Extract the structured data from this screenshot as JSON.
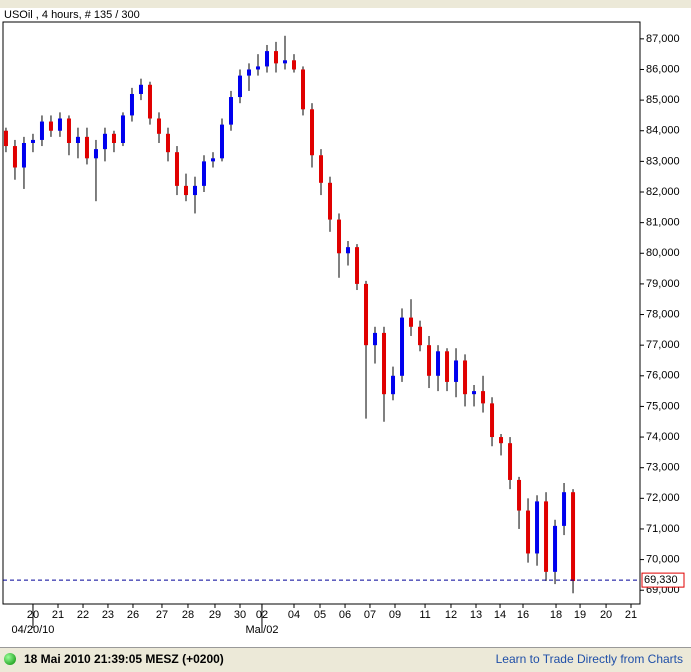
{
  "chart_data": {
    "type": "candlestick",
    "title": "USOil , 4 hours, # 135 / 300",
    "up_color": "#0000ee",
    "down_color": "#e00000",
    "wick_color": "#000000",
    "grid": false,
    "open": [
      84.0,
      83.5,
      82.8,
      83.6,
      83.7,
      84.3,
      84.0,
      84.4,
      83.6,
      83.8,
      83.1,
      83.4,
      83.9,
      83.6,
      84.5,
      85.2,
      85.5,
      84.4,
      83.9,
      83.3,
      82.2,
      81.9,
      82.2,
      83.0,
      83.1,
      84.2,
      85.1,
      85.8,
      86.0,
      86.1,
      86.6,
      86.2,
      86.3,
      86.0,
      84.7,
      83.2,
      82.3,
      81.1,
      80.0,
      80.2,
      79.0,
      77.0,
      77.4,
      75.4,
      76.0,
      77.9,
      77.6,
      77.0,
      76.0,
      76.8,
      75.8,
      76.5,
      75.4,
      75.5,
      75.1,
      74.0,
      73.8,
      72.6,
      71.6,
      70.2,
      71.9,
      69.6,
      71.1,
      72.2
    ],
    "high": [
      84.1,
      83.7,
      83.8,
      83.9,
      84.5,
      84.5,
      84.6,
      84.5,
      84.1,
      84.1,
      83.7,
      84.1,
      84.0,
      84.6,
      85.4,
      85.7,
      85.6,
      84.6,
      84.1,
      83.5,
      82.6,
      82.5,
      83.2,
      83.3,
      84.4,
      85.3,
      86.0,
      86.2,
      86.5,
      86.8,
      86.9,
      87.1,
      86.5,
      86.1,
      84.9,
      83.4,
      82.5,
      81.3,
      80.4,
      80.3,
      79.1,
      77.6,
      77.6,
      76.3,
      78.2,
      78.5,
      77.8,
      77.3,
      77.0,
      76.9,
      76.9,
      76.7,
      75.7,
      76.0,
      75.3,
      74.1,
      74.0,
      72.7,
      72.0,
      72.1,
      72.2,
      71.3,
      72.5,
      72.3
    ],
    "low": [
      83.3,
      82.4,
      82.1,
      83.3,
      83.5,
      83.8,
      83.8,
      83.2,
      83.1,
      82.9,
      81.7,
      83.0,
      83.3,
      83.5,
      84.3,
      85.0,
      84.2,
      83.6,
      83.0,
      81.9,
      81.7,
      81.3,
      82.0,
      82.8,
      83.0,
      84.0,
      84.9,
      85.3,
      85.8,
      85.9,
      85.9,
      86.0,
      85.9,
      84.5,
      82.8,
      81.9,
      80.7,
      79.2,
      79.6,
      78.8,
      74.6,
      76.4,
      74.5,
      75.2,
      75.8,
      77.3,
      76.8,
      75.6,
      75.5,
      75.5,
      75.3,
      75.0,
      75.0,
      74.8,
      73.7,
      73.4,
      72.3,
      71.0,
      69.9,
      69.8,
      69.3,
      69.2,
      70.8,
      68.9
    ],
    "close": [
      83.5,
      82.8,
      83.6,
      83.7,
      84.3,
      84.0,
      84.4,
      83.6,
      83.8,
      83.1,
      83.4,
      83.9,
      83.6,
      84.5,
      85.2,
      85.5,
      84.4,
      83.9,
      83.3,
      82.2,
      81.9,
      82.2,
      83.0,
      83.1,
      84.2,
      85.1,
      85.8,
      86.0,
      86.1,
      86.6,
      86.2,
      86.3,
      86.0,
      84.7,
      83.2,
      82.3,
      81.1,
      80.0,
      80.2,
      79.0,
      77.0,
      77.4,
      75.4,
      76.0,
      77.9,
      77.6,
      77.0,
      76.0,
      76.8,
      75.8,
      76.5,
      75.4,
      75.5,
      75.1,
      74.0,
      73.8,
      72.6,
      71.6,
      70.2,
      71.9,
      69.6,
      71.1,
      72.2,
      69.3
    ],
    "xlim": [
      -0.33,
      70.44
    ],
    "ylim": [
      68.55,
      87.55
    ],
    "xticks": [
      {
        "value": 3,
        "label": "20"
      },
      {
        "value": 5.78,
        "label": "21"
      },
      {
        "value": 8.56,
        "label": "22"
      },
      {
        "value": 11.33,
        "label": "23"
      },
      {
        "value": 14.11,
        "label": "26"
      },
      {
        "value": 17.33,
        "label": "27"
      },
      {
        "value": 20.22,
        "label": "28"
      },
      {
        "value": 23.22,
        "label": "29"
      },
      {
        "value": 26,
        "label": "30"
      },
      {
        "value": 28.44,
        "label": "02"
      },
      {
        "value": 32,
        "label": "04"
      },
      {
        "value": 34.89,
        "label": "05"
      },
      {
        "value": 37.67,
        "label": "06"
      },
      {
        "value": 40.44,
        "label": "07"
      },
      {
        "value": 43.22,
        "label": "09"
      },
      {
        "value": 46.56,
        "label": "11"
      },
      {
        "value": 49.44,
        "label": "12"
      },
      {
        "value": 52.22,
        "label": "13"
      },
      {
        "value": 54.89,
        "label": "14"
      },
      {
        "value": 57.44,
        "label": "16"
      },
      {
        "value": 61.11,
        "label": "18"
      },
      {
        "value": 63.78,
        "label": "19"
      },
      {
        "value": 66.67,
        "label": "20"
      },
      {
        "value": 69.44,
        "label": "21"
      }
    ],
    "date_labels": [
      {
        "value": 3,
        "label": "04/20/10"
      },
      {
        "value": 28.44,
        "label": "Mai/02"
      }
    ],
    "yticks": [
      {
        "value": 69,
        "label": "69,000"
      },
      {
        "value": 70,
        "label": "70,000"
      },
      {
        "value": 71,
        "label": "71,000"
      },
      {
        "value": 72,
        "label": "72,000"
      },
      {
        "value": 73,
        "label": "73,000"
      },
      {
        "value": 74,
        "label": "74,000"
      },
      {
        "value": 75,
        "label": "75,000"
      },
      {
        "value": 76,
        "label": "76,000"
      },
      {
        "value": 77,
        "label": "77,000"
      },
      {
        "value": 78,
        "label": "78,000"
      },
      {
        "value": 79,
        "label": "79,000"
      },
      {
        "value": 80,
        "label": "80,000"
      },
      {
        "value": 81,
        "label": "81,000"
      },
      {
        "value": 82,
        "label": "82,000"
      },
      {
        "value": 83,
        "label": "83,000"
      },
      {
        "value": 84,
        "label": "84,000"
      },
      {
        "value": 85,
        "label": "85,000"
      },
      {
        "value": 86,
        "label": "86,000"
      },
      {
        "value": 87,
        "label": "87,000"
      }
    ],
    "last_price": {
      "value": 69.33,
      "label": "69,330",
      "color": "#000099"
    }
  },
  "status_bar": {
    "time": "18 Mai 2010 21:39:05  MESZ (+0200)",
    "link": "Learn to Trade Directly from Charts"
  }
}
